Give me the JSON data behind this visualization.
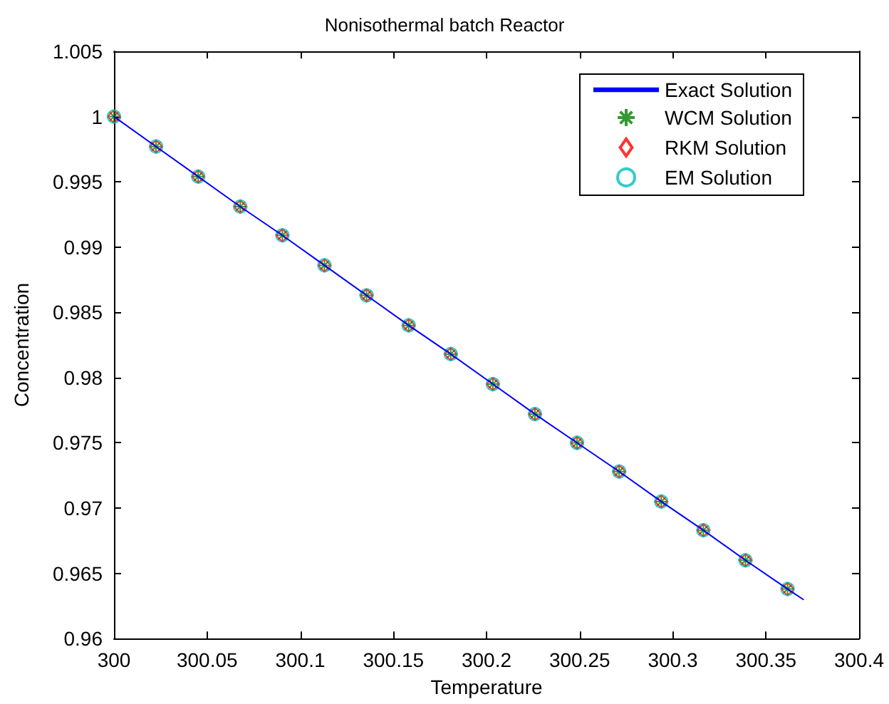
{
  "chart_data": {
    "type": "line",
    "title": "Nonisothermal batch Reactor",
    "xlabel": "Temperature",
    "ylabel": "Concentration",
    "x": [
      300,
      300.0226,
      300.0452,
      300.0678,
      300.0904,
      300.113,
      300.1356,
      300.1582,
      300.1808,
      300.2034,
      300.226,
      300.2486,
      300.2712,
      300.2938,
      300.3164,
      300.339,
      300.3616
    ],
    "series": [
      {
        "name": "Exact Solution",
        "type": "line",
        "color": "#0000ff",
        "marker": "none",
        "x": [
          300,
          300.0226,
          300.0452,
          300.0678,
          300.0904,
          300.113,
          300.1356,
          300.1582,
          300.1808,
          300.2034,
          300.226,
          300.2486,
          300.2712,
          300.2938,
          300.3164,
          300.339,
          300.3616,
          300.37
        ],
        "values": [
          1,
          0.9977,
          0.9954,
          0.9931,
          0.9909,
          0.9886,
          0.9863,
          0.984,
          0.9818,
          0.9795,
          0.9772,
          0.975,
          0.9728,
          0.9705,
          0.9683,
          0.966,
          0.9638,
          0.963
        ]
      },
      {
        "name": "WCM Solution",
        "type": "scatter",
        "color": "#008000",
        "marker": "cross",
        "values": [
          1,
          0.9977,
          0.9954,
          0.9931,
          0.9909,
          0.9886,
          0.9863,
          0.984,
          0.9818,
          0.9795,
          0.9772,
          0.975,
          0.9728,
          0.9705,
          0.9683,
          0.966,
          0.9638
        ]
      },
      {
        "name": "RKM Solution",
        "type": "scatter",
        "color": "#ff0000",
        "marker": "diamond",
        "values": [
          1,
          0.9977,
          0.9954,
          0.9931,
          0.9909,
          0.9886,
          0.9863,
          0.984,
          0.9818,
          0.9795,
          0.9772,
          0.975,
          0.9728,
          0.9705,
          0.9683,
          0.966,
          0.9638
        ]
      },
      {
        "name": "EM Solution",
        "type": "scatter",
        "color": "#00bfbf",
        "marker": "circle",
        "values": [
          1,
          0.9977,
          0.9954,
          0.9931,
          0.9909,
          0.9886,
          0.9863,
          0.984,
          0.9818,
          0.9795,
          0.9772,
          0.975,
          0.9728,
          0.9705,
          0.9683,
          0.966,
          0.9638
        ]
      }
    ],
    "xlim": [
      300,
      300.4
    ],
    "xticks": [
      300,
      300.05,
      300.1,
      300.15,
      300.2,
      300.25,
      300.3,
      300.35,
      300.4
    ],
    "ylim": [
      0.96,
      1.005
    ],
    "yticks": [
      0.96,
      0.965,
      0.97,
      0.975,
      0.98,
      0.985,
      0.99,
      0.995,
      1,
      1.005
    ],
    "grid": false,
    "legend": "top right"
  }
}
